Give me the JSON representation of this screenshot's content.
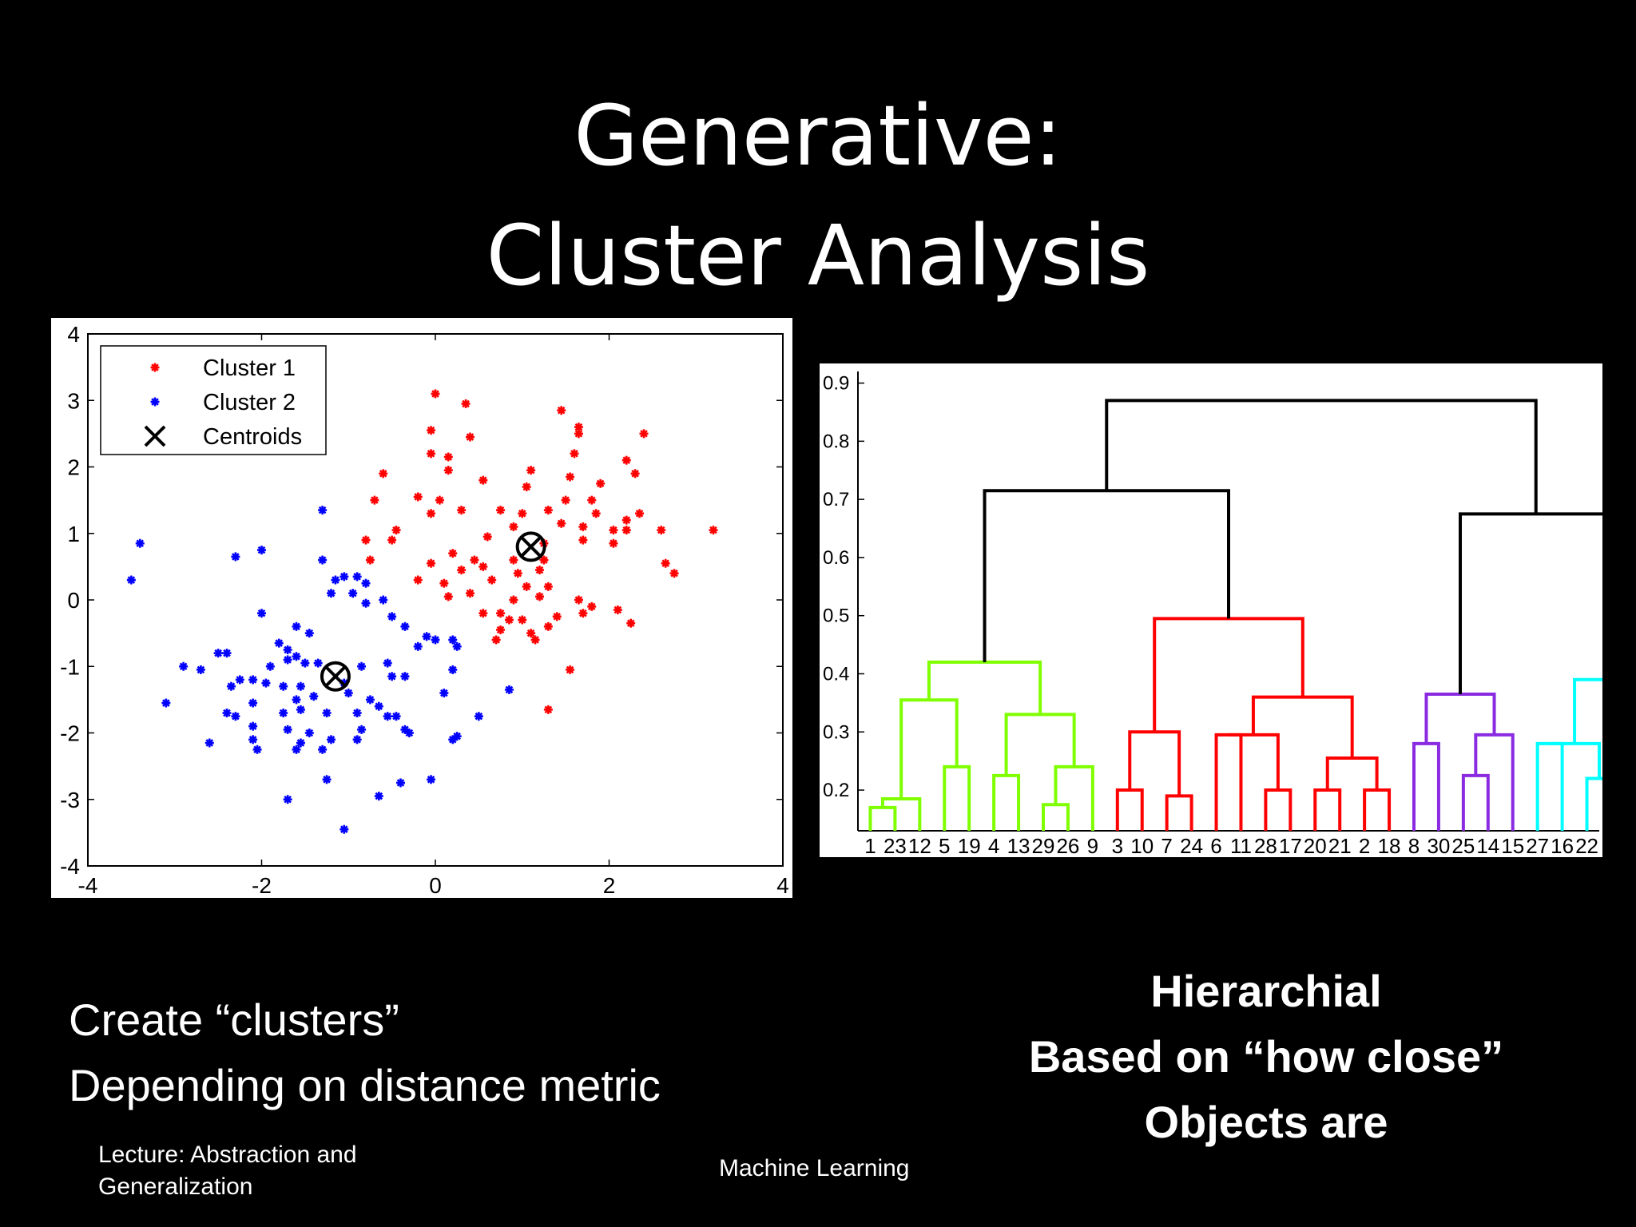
{
  "slide": {
    "title_line1": "Generative:",
    "title_line2": "Cluster Analysis",
    "left_caption": [
      "Create “clusters”",
      "Depending on distance metric"
    ],
    "right_caption": [
      "Hierarchial",
      "Based on “how close”",
      "Objects are"
    ],
    "footer_left": [
      "Lecture: Abstraction and",
      "Generalization"
    ],
    "footer_center": "Machine Learning"
  },
  "chart_data": [
    {
      "type": "scatter",
      "xlim": [
        -4,
        4
      ],
      "ylim": [
        -4,
        4
      ],
      "xticks": [
        "-4",
        "-2",
        "0",
        "2",
        "4"
      ],
      "yticks": [
        "-4",
        "-3",
        "-2",
        "-1",
        "0",
        "1",
        "2",
        "3",
        "4"
      ],
      "legend_position": "top-left",
      "series": [
        {
          "name": "Cluster 1",
          "color": "#ff0000",
          "marker": "star",
          "points": [
            [
              0.0,
              3.1
            ],
            [
              0.35,
              2.95
            ],
            [
              1.45,
              2.85
            ],
            [
              1.65,
              2.6
            ],
            [
              2.4,
              2.5
            ],
            [
              -0.05,
              2.55
            ],
            [
              0.4,
              2.45
            ],
            [
              1.65,
              2.5
            ],
            [
              -0.05,
              2.2
            ],
            [
              0.15,
              2.15
            ],
            [
              1.6,
              2.2
            ],
            [
              2.2,
              2.1
            ],
            [
              0.15,
              1.95
            ],
            [
              -0.6,
              1.9
            ],
            [
              1.1,
              1.95
            ],
            [
              1.55,
              1.85
            ],
            [
              2.3,
              1.9
            ],
            [
              0.55,
              1.8
            ],
            [
              1.9,
              1.75
            ],
            [
              -0.7,
              1.5
            ],
            [
              -0.2,
              1.55
            ],
            [
              0.05,
              1.5
            ],
            [
              1.05,
              1.7
            ],
            [
              0.3,
              1.35
            ],
            [
              0.75,
              1.35
            ],
            [
              1.3,
              1.35
            ],
            [
              1.5,
              1.5
            ],
            [
              1.8,
              1.5
            ],
            [
              -0.05,
              1.3
            ],
            [
              1.0,
              1.3
            ],
            [
              1.85,
              1.3
            ],
            [
              2.2,
              1.2
            ],
            [
              2.35,
              1.3
            ],
            [
              -0.45,
              1.05
            ],
            [
              0.9,
              1.1
            ],
            [
              1.45,
              1.15
            ],
            [
              1.7,
              1.1
            ],
            [
              2.05,
              1.05
            ],
            [
              2.2,
              1.05
            ],
            [
              2.6,
              1.05
            ],
            [
              3.2,
              1.05
            ],
            [
              -0.8,
              0.9
            ],
            [
              -0.5,
              0.9
            ],
            [
              0.6,
              0.95
            ],
            [
              1.25,
              0.85
            ],
            [
              1.7,
              0.9
            ],
            [
              2.05,
              0.85
            ],
            [
              0.2,
              0.7
            ],
            [
              0.45,
              0.6
            ],
            [
              0.9,
              0.6
            ],
            [
              1.25,
              0.6
            ],
            [
              2.65,
              0.55
            ],
            [
              -0.75,
              0.6
            ],
            [
              -0.05,
              0.55
            ],
            [
              0.3,
              0.45
            ],
            [
              0.55,
              0.5
            ],
            [
              0.95,
              0.4
            ],
            [
              1.2,
              0.45
            ],
            [
              2.75,
              0.4
            ],
            [
              -0.2,
              0.3
            ],
            [
              0.1,
              0.25
            ],
            [
              0.65,
              0.3
            ],
            [
              1.05,
              0.2
            ],
            [
              1.3,
              0.2
            ],
            [
              0.15,
              0.05
            ],
            [
              0.4,
              0.1
            ],
            [
              0.9,
              0.0
            ],
            [
              1.2,
              0.05
            ],
            [
              1.65,
              0.0
            ],
            [
              1.8,
              -0.1
            ],
            [
              0.55,
              -0.2
            ],
            [
              0.75,
              -0.2
            ],
            [
              0.85,
              -0.3
            ],
            [
              1.0,
              -0.3
            ],
            [
              1.4,
              -0.25
            ],
            [
              1.7,
              -0.2
            ],
            [
              2.1,
              -0.15
            ],
            [
              0.75,
              -0.45
            ],
            [
              1.1,
              -0.5
            ],
            [
              1.3,
              -0.4
            ],
            [
              2.25,
              -0.35
            ],
            [
              0.7,
              -0.6
            ],
            [
              1.15,
              -0.6
            ],
            [
              1.55,
              -1.05
            ],
            [
              1.3,
              -1.65
            ]
          ]
        },
        {
          "name": "Cluster 2",
          "color": "#0000ff",
          "marker": "star",
          "points": [
            [
              -1.3,
              1.35
            ],
            [
              -3.4,
              0.85
            ],
            [
              -3.5,
              0.3
            ],
            [
              -2.3,
              0.65
            ],
            [
              -2.0,
              0.75
            ],
            [
              -1.3,
              0.6
            ],
            [
              -1.15,
              0.3
            ],
            [
              -1.05,
              0.35
            ],
            [
              -0.9,
              0.35
            ],
            [
              -0.8,
              0.25
            ],
            [
              -1.2,
              0.1
            ],
            [
              -0.95,
              0.1
            ],
            [
              -0.8,
              -0.05
            ],
            [
              -0.6,
              0.0
            ],
            [
              -2.0,
              -0.2
            ],
            [
              -1.6,
              -0.4
            ],
            [
              -1.45,
              -0.5
            ],
            [
              -0.5,
              -0.25
            ],
            [
              -0.35,
              -0.4
            ],
            [
              -0.1,
              -0.55
            ],
            [
              0.0,
              -0.6
            ],
            [
              -1.8,
              -0.65
            ],
            [
              -1.7,
              -0.75
            ],
            [
              -2.5,
              -0.8
            ],
            [
              -2.4,
              -0.8
            ],
            [
              -1.6,
              -0.85
            ],
            [
              -0.2,
              -0.7
            ],
            [
              0.2,
              -0.6
            ],
            [
              0.25,
              -0.7
            ],
            [
              -2.9,
              -1.0
            ],
            [
              -2.7,
              -1.05
            ],
            [
              -1.9,
              -1.0
            ],
            [
              -1.7,
              -0.9
            ],
            [
              -1.5,
              -0.95
            ],
            [
              -1.35,
              -0.95
            ],
            [
              -0.85,
              -1.0
            ],
            [
              -0.55,
              -0.95
            ],
            [
              0.2,
              -1.05
            ],
            [
              -2.25,
              -1.2
            ],
            [
              -2.1,
              -1.2
            ],
            [
              -1.95,
              -1.25
            ],
            [
              -1.75,
              -1.3
            ],
            [
              -1.55,
              -1.3
            ],
            [
              -1.05,
              -1.25
            ],
            [
              -0.5,
              -1.15
            ],
            [
              -0.35,
              -1.15
            ],
            [
              -2.35,
              -1.3
            ],
            [
              -0.75,
              -1.5
            ],
            [
              -0.65,
              -1.6
            ],
            [
              -1.4,
              -1.45
            ],
            [
              -1.0,
              -1.4
            ],
            [
              -3.1,
              -1.55
            ],
            [
              -2.1,
              -1.55
            ],
            [
              -1.6,
              -1.5
            ],
            [
              -0.9,
              -1.7
            ],
            [
              0.1,
              -1.4
            ],
            [
              0.85,
              -1.35
            ],
            [
              -2.4,
              -1.7
            ],
            [
              -2.3,
              -1.75
            ],
            [
              -1.75,
              -1.7
            ],
            [
              -1.55,
              -1.65
            ],
            [
              -1.25,
              -1.7
            ],
            [
              -0.55,
              -1.75
            ],
            [
              -0.45,
              -1.75
            ],
            [
              0.5,
              -1.75
            ],
            [
              -2.1,
              -1.9
            ],
            [
              -1.7,
              -1.95
            ],
            [
              -1.45,
              -2.0
            ],
            [
              -0.85,
              -1.95
            ],
            [
              -0.35,
              -1.95
            ],
            [
              -0.3,
              -2.0
            ],
            [
              -2.6,
              -2.15
            ],
            [
              -2.1,
              -2.1
            ],
            [
              -1.55,
              -2.15
            ],
            [
              -1.2,
              -2.1
            ],
            [
              -0.9,
              -2.1
            ],
            [
              0.25,
              -2.05
            ],
            [
              0.2,
              -2.1
            ],
            [
              -2.05,
              -2.25
            ],
            [
              -1.6,
              -2.25
            ],
            [
              -1.3,
              -2.25
            ],
            [
              -1.25,
              -2.7
            ],
            [
              -0.4,
              -2.75
            ],
            [
              -0.05,
              -2.7
            ],
            [
              -0.65,
              -2.95
            ],
            [
              -1.7,
              -3.0
            ],
            [
              -1.05,
              -3.45
            ]
          ]
        }
      ],
      "centroids": {
        "name": "Centroids",
        "color": "#000000",
        "points": [
          [
            1.1,
            0.8
          ],
          [
            -1.15,
            -1.15
          ]
        ]
      }
    },
    {
      "type": "dendrogram",
      "ylim": [
        0.13,
        0.92
      ],
      "yticks": [
        "0.2",
        "0.3",
        "0.4",
        "0.5",
        "0.6",
        "0.7",
        "0.8",
        "0.9"
      ],
      "leaf_labels": [
        "1",
        "23",
        "12",
        "5",
        "19",
        "4",
        "13",
        "29",
        "26",
        "9",
        "3",
        "10",
        "7",
        "24",
        "6",
        "11",
        "28",
        "17",
        "20",
        "21",
        "2",
        "18",
        "8",
        "30",
        "25",
        "14",
        "15",
        "27",
        "16",
        "22"
      ],
      "link_colors": {
        "green": "#7fff00",
        "red": "#ff0000",
        "purple": "#8a2be2",
        "cyan": "#00ffff",
        "root": "#000000"
      },
      "links": [
        {
          "l": [
            0,
            1
          ],
          "h": 0.17,
          "c": "green"
        },
        {
          "l": [
            "n1",
            2
          ],
          "h": 0.185,
          "c": "green"
        },
        {
          "l": [
            3,
            4
          ],
          "h": 0.24,
          "c": "green"
        },
        {
          "l": [
            "n2",
            "n3"
          ],
          "h": 0.355,
          "c": "green"
        },
        {
          "l": [
            5,
            6
          ],
          "h": 0.225,
          "c": "green"
        },
        {
          "l": [
            7,
            8
          ],
          "h": 0.175,
          "c": "green"
        },
        {
          "l": [
            "n6",
            9
          ],
          "h": 0.24,
          "c": "green"
        },
        {
          "l": [
            "n5",
            "n7"
          ],
          "h": 0.33,
          "c": "green"
        },
        {
          "l": [
            "n4",
            "n8"
          ],
          "h": 0.42,
          "c": "green"
        },
        {
          "l": [
            10,
            11
          ],
          "h": 0.2,
          "c": "red"
        },
        {
          "l": [
            12,
            13
          ],
          "h": 0.19,
          "c": "red"
        },
        {
          "l": [
            "n10",
            "n11"
          ],
          "h": 0.3,
          "c": "red"
        },
        {
          "l": [
            14,
            15
          ],
          "h": 0.295,
          "c": "red"
        },
        {
          "l": [
            16,
            17
          ],
          "h": 0.2,
          "c": "red"
        },
        {
          "l": [
            "n13",
            "n14"
          ],
          "h": 0.295,
          "c": "red"
        },
        {
          "l": [
            18,
            19
          ],
          "h": 0.2,
          "c": "red"
        },
        {
          "l": [
            20,
            21
          ],
          "h": 0.2,
          "c": "red"
        },
        {
          "l": [
            "n16",
            "n17"
          ],
          "h": 0.255,
          "c": "red"
        },
        {
          "l": [
            "n15",
            "n18"
          ],
          "h": 0.36,
          "c": "red"
        },
        {
          "l": [
            "n12",
            "n19"
          ],
          "h": 0.495,
          "c": "red"
        },
        {
          "l": [
            22,
            23
          ],
          "h": 0.28,
          "c": "purple"
        },
        {
          "l": [
            24,
            25
          ],
          "h": 0.225,
          "c": "purple"
        },
        {
          "l": [
            "n22",
            26
          ],
          "h": 0.295,
          "c": "purple"
        },
        {
          "l": [
            "n21",
            "n23"
          ],
          "h": 0.365,
          "c": "purple"
        },
        {
          "l": [
            27,
            28
          ],
          "h": 0.28,
          "c": "cyan"
        },
        {
          "l": [
            29,
            30
          ],
          "h": 0.22,
          "c": "cyan"
        },
        {
          "l": [
            "n25",
            "n26"
          ],
          "h": 0.28,
          "c": "cyan"
        },
        {
          "l": [
            31,
            32
          ],
          "h": 0.2,
          "c": "cyan"
        },
        {
          "l": [
            "n27",
            "n28"
          ],
          "h": 0.39,
          "c": "cyan"
        },
        {
          "l": [
            "n9",
            "n20"
          ],
          "h": 0.715,
          "c": "root"
        },
        {
          "l": [
            "n24",
            "n29"
          ],
          "h": 0.675,
          "c": "root"
        },
        {
          "l": [
            "n30",
            "n31"
          ],
          "h": 0.87,
          "c": "root"
        }
      ]
    }
  ]
}
